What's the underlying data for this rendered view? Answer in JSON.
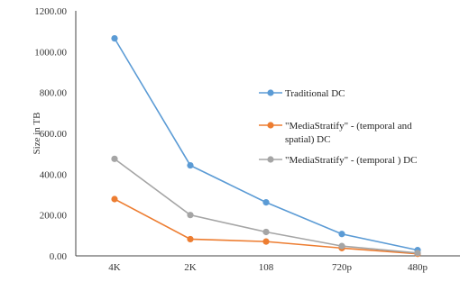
{
  "chart_data": {
    "type": "line",
    "title": "",
    "xlabel": "",
    "ylabel": "Size  in TB",
    "categories": [
      "4K",
      "2K",
      "108",
      "720p",
      "480p"
    ],
    "ylim": [
      0,
      1200
    ],
    "yticks": [
      "0.00",
      "200.00",
      "400.00",
      "600.00",
      "800.00",
      "1000.00",
      "1200.00"
    ],
    "grid": false,
    "legend_position": "right",
    "series": [
      {
        "name": "Traditional DC",
        "color": "#5b9bd5",
        "values": [
          1065,
          443,
          262,
          107,
          28
        ]
      },
      {
        "name": "\"MediaStratify\" - (temporal and spatial) DC",
        "legend_lines": [
          "\"MediaStratify\" - (temporal and",
          "spatial) DC"
        ],
        "color": "#ed7d31",
        "values": [
          278,
          82,
          70,
          38,
          10
        ]
      },
      {
        "name": "\"MediaStratify\" - (temporal ) DC",
        "color": "#a5a5a5",
        "values": [
          475,
          200,
          117,
          48,
          14
        ]
      }
    ]
  }
}
